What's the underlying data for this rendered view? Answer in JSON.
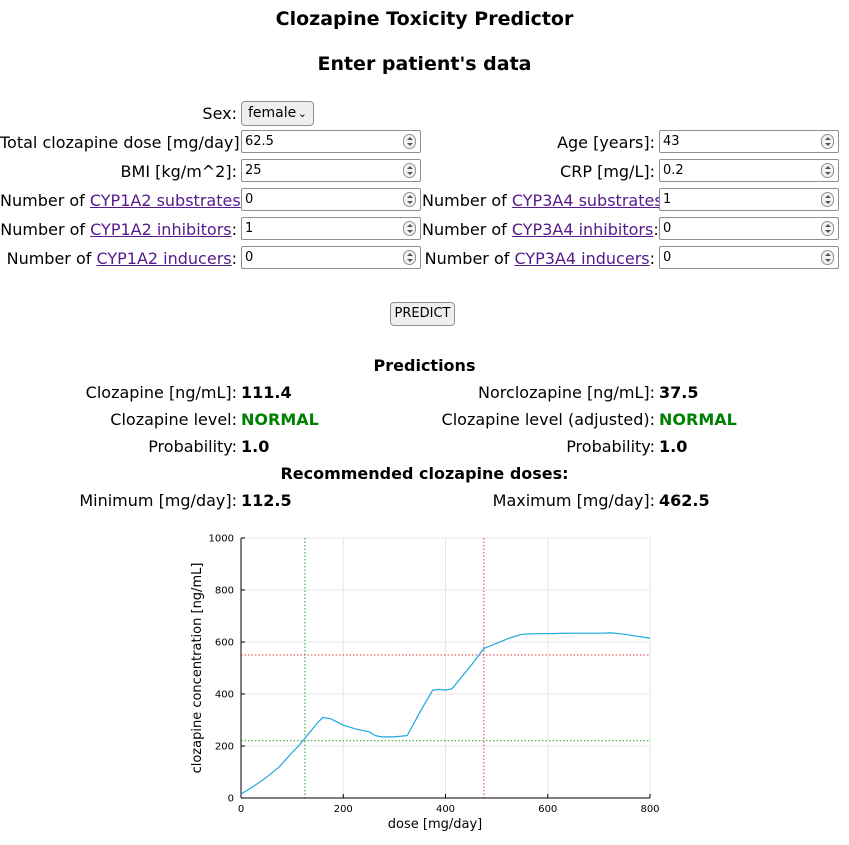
{
  "header": {
    "title": "Clozapine Toxicity Predictor",
    "subtitle": "Enter patient's data"
  },
  "form": {
    "sex": {
      "label": "Sex:",
      "value": "female"
    },
    "dose": {
      "label": "Total clozapine dose [mg/day]:",
      "value": "62.5"
    },
    "age": {
      "label": "Age [years]:",
      "value": "43"
    },
    "bmi": {
      "label": "BMI [kg/m^2]:",
      "value": "25"
    },
    "crp": {
      "label": "CRP [mg/L]:",
      "value": "0.2"
    },
    "number_of": "Number of",
    "cyp1a2_substrates": {
      "link": "CYP1A2 substrates",
      "value": "0"
    },
    "cyp3a4_substrates": {
      "link": "CYP3A4 substrates",
      "value": "1"
    },
    "cyp1a2_inhibitors": {
      "link": "CYP1A2 inhibitors",
      "value": "1"
    },
    "cyp3a4_inhibitors": {
      "link": "CYP3A4 inhibitors",
      "value": "0"
    },
    "cyp1a2_inducers": {
      "link": "CYP1A2 inducers",
      "value": "0"
    },
    "cyp3a4_inducers": {
      "link": "CYP3A4 inducers",
      "value": "0"
    },
    "colon": ":",
    "predict_label": "PREDICT"
  },
  "predictions": {
    "heading": "Predictions",
    "clozapine": {
      "label": "Clozapine [ng/mL]:",
      "value": "111.4"
    },
    "norclozapine": {
      "label": "Norclozapine [ng/mL]:",
      "value": "37.5"
    },
    "level": {
      "label": "Clozapine level:",
      "value": "NORMAL"
    },
    "level_adjusted": {
      "label": "Clozapine level (adjusted):",
      "value": "NORMAL"
    },
    "probability_left": {
      "label": "Probability:",
      "value": "1.0"
    },
    "probability_right": {
      "label": "Probability:",
      "value": "1.0"
    },
    "recommended_heading": "Recommended clozapine doses:",
    "minimum": {
      "label": "Minimum [mg/day]:",
      "value": "112.5"
    },
    "maximum": {
      "label": "Maximum [mg/day]:",
      "value": "462.5"
    }
  },
  "colors": {
    "link": "#551a8b",
    "normal": "#008000",
    "series": "#1ea7e1",
    "upper": "#e2393c",
    "lower": "#2ca02c"
  },
  "chart_data": {
    "type": "line",
    "xlabel": "dose [mg/day]",
    "ylabel": "clozapine concentration [ng/mL]",
    "xlim": [
      0,
      800
    ],
    "ylim": [
      0,
      1000
    ],
    "xticks": [
      "0",
      "200",
      "400",
      "600",
      "800"
    ],
    "yticks": [
      "0",
      "200",
      "400",
      "600",
      "800",
      "1000"
    ],
    "grid": true,
    "x": [
      0,
      25,
      50,
      75,
      100,
      112.5,
      125,
      150,
      160,
      175,
      200,
      225,
      250,
      262.5,
      275,
      300,
      325,
      350,
      375,
      387.5,
      400,
      412.5,
      425,
      450,
      475,
      500,
      525,
      550,
      575,
      600,
      625,
      650,
      675,
      700,
      725,
      750,
      775,
      800
    ],
    "y": [
      15,
      45,
      80,
      120,
      175,
      200,
      230,
      290,
      310,
      305,
      280,
      265,
      255,
      240,
      235,
      235,
      240,
      330,
      415,
      418,
      415,
      420,
      450,
      510,
      575,
      595,
      615,
      630,
      632,
      632,
      633,
      634,
      634,
      634,
      635,
      630,
      622,
      615
    ],
    "vlines": [
      {
        "x": 125,
        "color": "green"
      },
      {
        "x": 475,
        "color": "red"
      }
    ],
    "hlines": [
      {
        "y": 220,
        "color": "green"
      },
      {
        "y": 550,
        "color": "red"
      }
    ]
  }
}
